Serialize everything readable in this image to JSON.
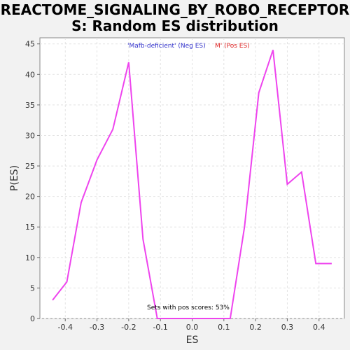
{
  "chart_data": {
    "type": "line",
    "title_line1": "REACTOME_SIGNALING_BY_ROBO_RECEPTOR",
    "title_line2": "S: Random ES distribution",
    "xlabel": "ES",
    "ylabel": "P(ES)",
    "xlim": [
      -0.48,
      0.48
    ],
    "ylim": [
      0,
      46
    ],
    "xticks": [
      -0.4,
      -0.3,
      -0.2,
      -0.1,
      0.0,
      0.1,
      0.2,
      0.3,
      0.4
    ],
    "xtick_labels": [
      "-0.4",
      "-0.3",
      "-0.2",
      "-0.1",
      "0.0",
      "0.1",
      "0.2",
      "0.3",
      "0.4"
    ],
    "yticks": [
      0,
      5,
      10,
      15,
      20,
      25,
      30,
      35,
      40,
      45
    ],
    "ytick_labels": [
      "0",
      "5",
      "10",
      "15",
      "20",
      "25",
      "30",
      "35",
      "40",
      "45"
    ],
    "grid": true,
    "legend": {
      "neg_label": "'Mafb-deficient' (Neg ES)",
      "pos_label": "M' (Pos ES)",
      "neg_color": "#3333cc",
      "pos_color": "#dd2222"
    },
    "annotation": "Sets with pos scores: 53%",
    "line_color": "#ee44ee",
    "series": [
      {
        "x": [
          -0.44,
          -0.395,
          -0.35,
          -0.3,
          -0.25,
          -0.2,
          -0.155,
          -0.11,
          0.0,
          0.12,
          0.165,
          0.21,
          0.255,
          0.3,
          0.345,
          0.39,
          0.44
        ],
        "y": [
          3,
          6,
          19,
          26,
          31,
          42,
          13,
          0,
          0,
          0,
          15,
          37,
          44,
          22,
          24,
          9,
          9
        ]
      }
    ]
  }
}
